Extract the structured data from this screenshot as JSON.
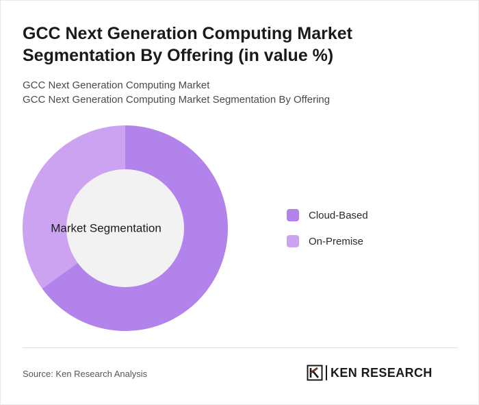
{
  "title": "GCC Next Generation Computing Market Segmentation By Offering (in value %)",
  "subtitles": [
    "GCC Next Generation Computing Market",
    "GCC Next Generation Computing Market Segmentation By Offering"
  ],
  "chart_data": {
    "type": "pie",
    "style": "donut",
    "center_label": "Market Segmentation",
    "categories": [
      "Cloud-Based",
      "On-Premise"
    ],
    "values": [
      65,
      35
    ],
    "colors": [
      "#b383ec",
      "#cba3f1"
    ],
    "center_color": "#f2f2f2",
    "start_angle_deg": 0,
    "direction": "clockwise",
    "legend_placement": "right"
  },
  "legend": {
    "items": [
      {
        "label": "Cloud-Based",
        "color": "#b383ec"
      },
      {
        "label": "On-Premise",
        "color": "#cba3f1"
      }
    ]
  },
  "footer": {
    "source": "Source: Ken Research Analysis",
    "logo_text": "KEN RESEARCH",
    "logo_icon": "ken-research-k-icon"
  }
}
